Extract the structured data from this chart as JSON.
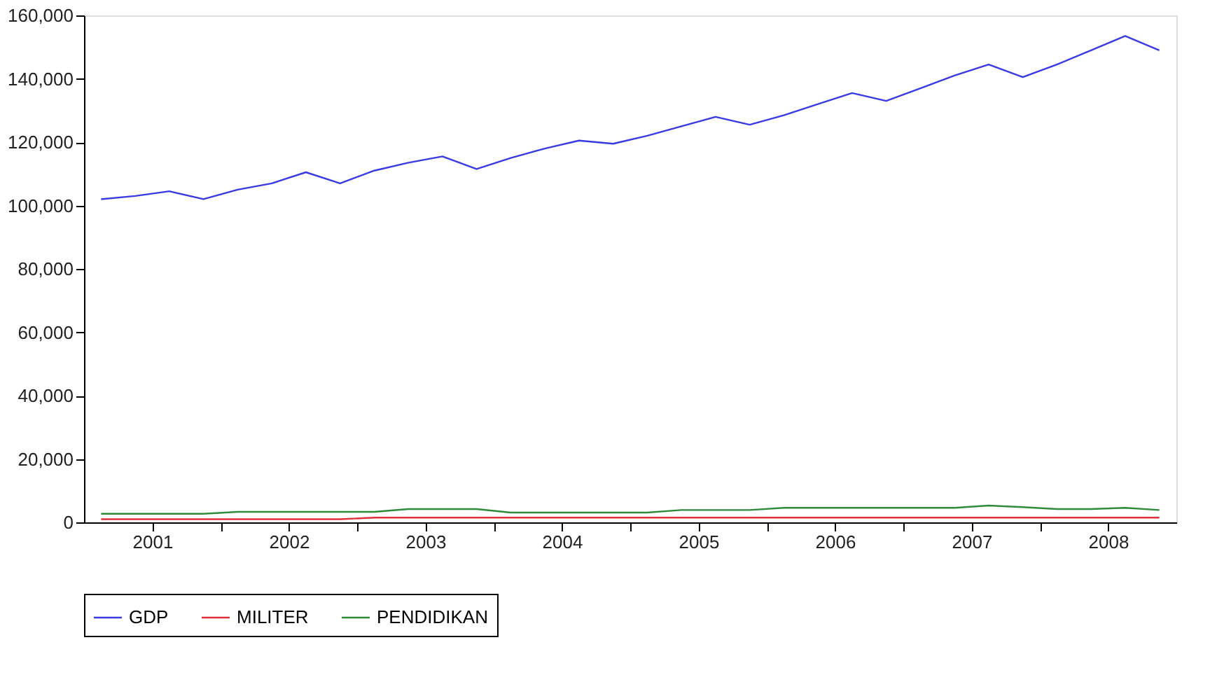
{
  "chart_data": {
    "type": "line",
    "x": [
      2001,
      2001.25,
      2001.5,
      2001.75,
      2002,
      2002.25,
      2002.5,
      2002.75,
      2003,
      2003.25,
      2003.5,
      2003.75,
      2004,
      2004.25,
      2004.5,
      2004.75,
      2005,
      2005.25,
      2005.5,
      2005.75,
      2006,
      2006.25,
      2006.5,
      2006.75,
      2007,
      2007.25,
      2007.5,
      2007.75,
      2008,
      2008.25,
      2008.5,
      2008.75
    ],
    "series": [
      {
        "name": "GDP",
        "color": "#3a3ae0",
        "values": [
          102000,
          103000,
          104500,
          102000,
          105000,
          107000,
          110500,
          107000,
          111000,
          113500,
          115500,
          111500,
          115000,
          118000,
          120500,
          119500,
          122000,
          125000,
          128000,
          125500,
          128500,
          132000,
          135500,
          133000,
          137000,
          141000,
          144500,
          140500,
          144500,
          149000,
          153500,
          149000
        ]
      },
      {
        "name": "MILITER",
        "color": "#e0303c",
        "values": [
          1000,
          1000,
          1000,
          1000,
          1000,
          1000,
          1000,
          1000,
          1500,
          1500,
          1500,
          1500,
          1500,
          1500,
          1500,
          1500,
          1500,
          1500,
          1500,
          1500,
          1500,
          1500,
          1500,
          1500,
          1500,
          1500,
          1500,
          1500,
          1500,
          1500,
          1500,
          1500
        ]
      },
      {
        "name": "PENDIDIKAN",
        "color": "#2e8b3a",
        "values": [
          2700,
          2700,
          2700,
          2700,
          3300,
          3300,
          3300,
          3300,
          3300,
          4200,
          4200,
          4200,
          3100,
          3100,
          3100,
          3100,
          3100,
          3900,
          3900,
          3900,
          4600,
          4600,
          4600,
          4600,
          4600,
          4600,
          5300,
          4800,
          4200,
          4200,
          4600,
          3900
        ]
      }
    ],
    "xlim": [
      2000.875,
      2008.875
    ],
    "xticks": [
      {
        "value": 2001.375,
        "label": "2001"
      },
      {
        "value": 2001.875,
        "label": null
      },
      {
        "value": 2002.375,
        "label": "2002"
      },
      {
        "value": 2002.875,
        "label": null
      },
      {
        "value": 2003.375,
        "label": "2003"
      },
      {
        "value": 2003.875,
        "label": null
      },
      {
        "value": 2004.375,
        "label": "2004"
      },
      {
        "value": 2004.875,
        "label": null
      },
      {
        "value": 2005.375,
        "label": "2005"
      },
      {
        "value": 2005.875,
        "label": null
      },
      {
        "value": 2006.375,
        "label": "2006"
      },
      {
        "value": 2006.875,
        "label": null
      },
      {
        "value": 2007.375,
        "label": "2007"
      },
      {
        "value": 2007.875,
        "label": null
      },
      {
        "value": 2008.375,
        "label": "2008"
      }
    ],
    "ylim": [
      0,
      160000
    ],
    "yticks": [
      {
        "value": 0,
        "label": "0"
      },
      {
        "value": 20000,
        "label": "20,000"
      },
      {
        "value": 40000,
        "label": "40,000"
      },
      {
        "value": 60000,
        "label": "60,000"
      },
      {
        "value": 80000,
        "label": "80,000"
      },
      {
        "value": 100000,
        "label": "100,000"
      },
      {
        "value": 120000,
        "label": "120,000"
      },
      {
        "value": 140000,
        "label": "140,000"
      },
      {
        "value": 160000,
        "label": "160,000"
      }
    ],
    "grid": false,
    "legend": "bottom",
    "marker": "none",
    "line_style": "solid"
  }
}
